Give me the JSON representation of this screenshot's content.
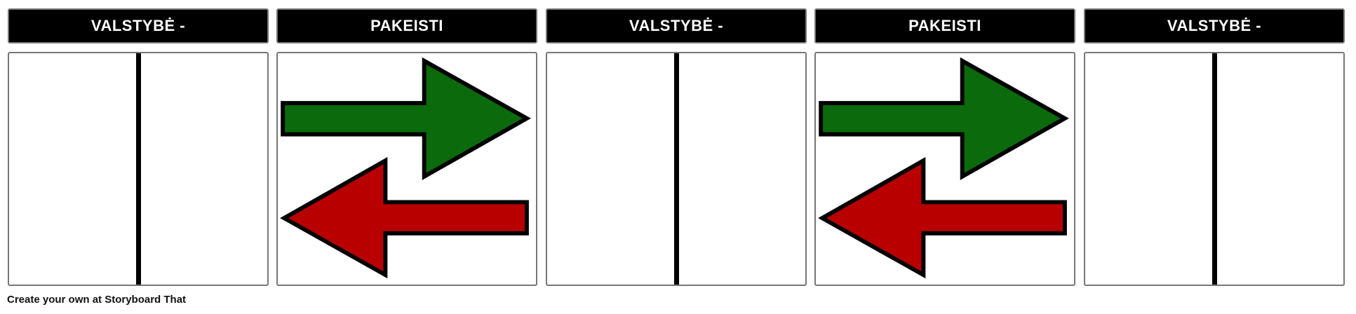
{
  "panels": [
    {
      "title": "VALSTYBĖ -",
      "type": "state"
    },
    {
      "title": "PAKEISTI",
      "type": "change"
    },
    {
      "title": "VALSTYBĖ -",
      "type": "state"
    },
    {
      "title": "PAKEISTI",
      "type": "change"
    },
    {
      "title": "VALSTYBĖ -",
      "type": "state"
    }
  ],
  "colors": {
    "forward_arrow": "#0b6a0b",
    "backward_arrow": "#b80000",
    "header_bg": "#000000"
  },
  "footer": {
    "text": "Create your own at Storyboard That"
  }
}
